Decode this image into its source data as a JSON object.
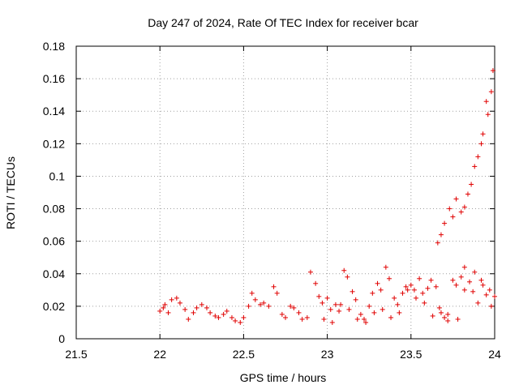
{
  "chart_data": {
    "type": "scatter",
    "title": "Day 247 of 2024, Rate Of TEC Index for receiver bcar",
    "xlabel": "GPS time / hours",
    "ylabel": "ROTI / TECUs",
    "xlim": [
      21.5,
      24
    ],
    "ylim": [
      0,
      0.18
    ],
    "x_ticks": [
      "21.5",
      "22",
      "22.5",
      "23",
      "23.5",
      "24"
    ],
    "y_ticks": [
      "0",
      "0.02",
      "0.04",
      "0.06",
      "0.08",
      "0.1",
      "0.12",
      "0.14",
      "0.16",
      "0.18"
    ],
    "grid": true,
    "marker": "+",
    "color": "#e00000",
    "series": [
      {
        "name": "ROTI",
        "x": [
          22.0,
          22.02,
          22.03,
          22.05,
          22.07,
          22.1,
          22.12,
          22.15,
          22.17,
          22.2,
          22.22,
          22.25,
          22.28,
          22.3,
          22.33,
          22.35,
          22.38,
          22.4,
          22.43,
          22.45,
          22.48,
          22.5,
          22.53,
          22.55,
          22.57,
          22.6,
          22.62,
          22.65,
          22.68,
          22.7,
          22.73,
          22.75,
          22.78,
          22.8,
          22.83,
          22.85,
          22.88,
          22.9,
          22.93,
          22.95,
          22.97,
          23.0,
          23.02,
          23.05,
          23.07,
          23.1,
          23.12,
          23.15,
          23.17,
          23.2,
          23.22,
          23.25,
          23.27,
          23.3,
          23.32,
          23.35,
          23.37,
          23.4,
          23.42,
          23.45,
          23.47,
          23.5,
          23.52,
          23.55,
          23.57,
          23.6,
          23.62,
          23.65,
          23.67,
          23.7,
          23.72,
          23.75,
          23.77,
          23.8,
          23.82,
          23.85,
          23.87,
          23.9,
          23.92,
          23.95,
          23.97,
          24.0,
          23.98,
          23.93,
          23.88,
          23.82,
          23.78,
          23.72,
          23.68,
          23.63,
          23.58,
          23.53,
          23.48,
          23.43,
          23.38,
          23.33,
          23.28,
          23.23,
          23.18,
          23.13,
          23.08,
          23.03,
          22.98,
          23.66,
          23.68,
          23.7,
          23.73,
          23.75,
          23.77,
          23.8,
          23.82,
          23.84,
          23.86,
          23.88,
          23.9,
          23.92,
          23.93,
          23.95,
          23.96,
          23.98,
          23.99
        ],
        "y": [
          0.017,
          0.019,
          0.021,
          0.016,
          0.024,
          0.025,
          0.022,
          0.018,
          0.012,
          0.016,
          0.019,
          0.021,
          0.019,
          0.016,
          0.014,
          0.013,
          0.015,
          0.017,
          0.013,
          0.011,
          0.01,
          0.013,
          0.02,
          0.028,
          0.024,
          0.021,
          0.022,
          0.02,
          0.032,
          0.028,
          0.015,
          0.013,
          0.02,
          0.019,
          0.016,
          0.012,
          0.013,
          0.041,
          0.034,
          0.026,
          0.022,
          0.025,
          0.018,
          0.021,
          0.017,
          0.042,
          0.038,
          0.029,
          0.024,
          0.015,
          0.012,
          0.02,
          0.028,
          0.034,
          0.03,
          0.044,
          0.037,
          0.025,
          0.021,
          0.028,
          0.032,
          0.033,
          0.03,
          0.037,
          0.028,
          0.031,
          0.036,
          0.032,
          0.019,
          0.013,
          0.015,
          0.036,
          0.033,
          0.038,
          0.044,
          0.035,
          0.029,
          0.022,
          0.036,
          0.027,
          0.03,
          0.026,
          0.02,
          0.033,
          0.041,
          0.03,
          0.012,
          0.011,
          0.016,
          0.014,
          0.022,
          0.025,
          0.03,
          0.016,
          0.013,
          0.018,
          0.016,
          0.01,
          0.012,
          0.018,
          0.021,
          0.01,
          0.012,
          0.059,
          0.064,
          0.071,
          0.08,
          0.075,
          0.086,
          0.078,
          0.081,
          0.089,
          0.095,
          0.106,
          0.112,
          0.12,
          0.126,
          0.146,
          0.138,
          0.152,
          0.165
        ]
      }
    ]
  }
}
